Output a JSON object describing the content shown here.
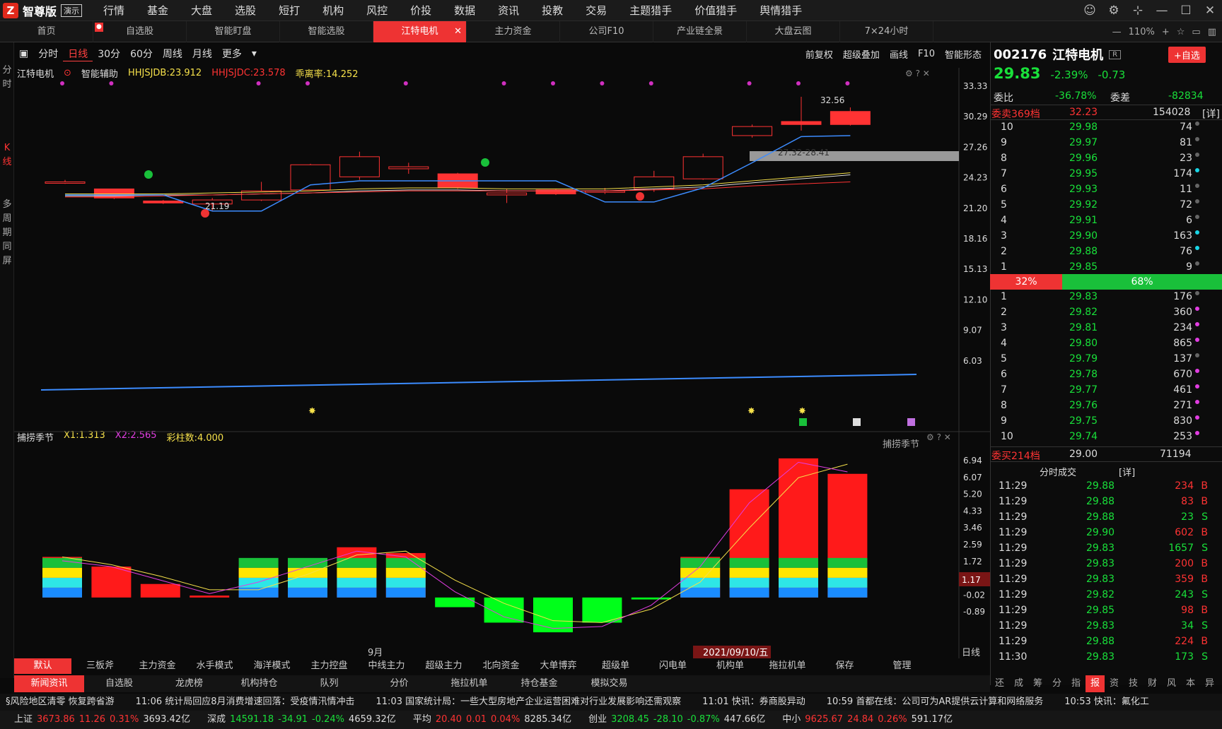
{
  "app": {
    "name": "智尊版",
    "demo": "演示"
  },
  "menu": [
    "行情",
    "基金",
    "大盘",
    "选股",
    "短打",
    "机构",
    "风控",
    "价投",
    "数据",
    "资讯",
    "投教",
    "交易",
    "主题猎手",
    "价值猎手",
    "舆情猎手"
  ],
  "tabs": [
    {
      "label": "首页"
    },
    {
      "label": "自选股"
    },
    {
      "label": "智能盯盘"
    },
    {
      "label": "智能选股"
    },
    {
      "label": "江特电机",
      "active": true
    },
    {
      "label": "主力资金"
    },
    {
      "label": "公司F10"
    },
    {
      "label": "产业链全景"
    },
    {
      "label": "大盘云图"
    },
    {
      "label": "7×24小时"
    }
  ],
  "zoom": "110%",
  "left_strip": [
    "分",
    "时",
    "K",
    "线",
    "多",
    "周",
    "期",
    "同",
    "屏"
  ],
  "periods": [
    "分时",
    "日线",
    "30分",
    "60分",
    "周线",
    "月线",
    "更多"
  ],
  "active_period": "日线",
  "right_tools": [
    "前复权",
    "超级叠加",
    "画线",
    "F10",
    "智能形态"
  ],
  "main_info": {
    "name": "江特电机",
    "assist": "智能辅助",
    "a": "HHJSJDB:23.912",
    "b": "HHJSJDC:23.578",
    "c": "乖离率:14.252"
  },
  "main_axis": [
    "33.33",
    "30.29",
    "27.26",
    "24.23",
    "21.20",
    "18.16",
    "15.13",
    "12.10",
    "9.07",
    "6.03"
  ],
  "annotations": {
    "high": "32.56",
    "low": "21.19",
    "zone": "27.32-28.41"
  },
  "ind2_info": {
    "name": "捕捞季节",
    "x1": "X1:1.313",
    "x2": "X2:2.565",
    "bars": "彩柱数:4.000",
    "right": "捕捞季节"
  },
  "ind2_axis": [
    "6.94",
    "6.07",
    "5.20",
    "4.33",
    "3.46",
    "2.59",
    "1.72",
    "0.85",
    "-0.02",
    "-0.89"
  ],
  "ind2_current": "1.17",
  "date_label": "2021/09/10/五",
  "month_label": "9月",
  "daily_label": "日线",
  "stock": {
    "code": "002176",
    "name": "江特电机",
    "price": "29.83",
    "pct": "-2.39%",
    "chg": "-0.73",
    "fav": "+自选"
  },
  "weibi": {
    "label1": "委比",
    "v1": "-36.78%",
    "label2": "委差",
    "v2": "-82834"
  },
  "sell_summary": {
    "label": "委卖369档",
    "price": "32.23",
    "vol": "154028",
    "detail": "[详]"
  },
  "sells": [
    [
      "10",
      "29.98",
      "74"
    ],
    [
      "9",
      "29.97",
      "81"
    ],
    [
      "8",
      "29.96",
      "23"
    ],
    [
      "7",
      "29.95",
      "174"
    ],
    [
      "6",
      "29.93",
      "11"
    ],
    [
      "5",
      "29.92",
      "72"
    ],
    [
      "4",
      "29.91",
      "6"
    ],
    [
      "3",
      "29.90",
      "163"
    ],
    [
      "2",
      "29.88",
      "76"
    ],
    [
      "1",
      "29.85",
      "9"
    ]
  ],
  "ratio": {
    "buy": "32%",
    "sell": "68%"
  },
  "buys": [
    [
      "1",
      "29.83",
      "176"
    ],
    [
      "2",
      "29.82",
      "360"
    ],
    [
      "3",
      "29.81",
      "234"
    ],
    [
      "4",
      "29.80",
      "865"
    ],
    [
      "5",
      "29.79",
      "137"
    ],
    [
      "6",
      "29.78",
      "670"
    ],
    [
      "7",
      "29.77",
      "461"
    ],
    [
      "8",
      "29.76",
      "271"
    ],
    [
      "9",
      "29.75",
      "830"
    ],
    [
      "10",
      "29.74",
      "253"
    ]
  ],
  "buy_summary": {
    "label": "委买214档",
    "price": "29.00",
    "vol": "71194"
  },
  "ticks_title": {
    "label": "分时成交",
    "detail": "[详]"
  },
  "ticks": [
    [
      "11:29",
      "29.88",
      "234",
      "B"
    ],
    [
      "11:29",
      "29.88",
      "83",
      "B"
    ],
    [
      "11:29",
      "29.88",
      "23",
      "S"
    ],
    [
      "11:29",
      "29.90",
      "602",
      "B"
    ],
    [
      "11:29",
      "29.83",
      "1657",
      "S"
    ],
    [
      "11:29",
      "29.83",
      "200",
      "B"
    ],
    [
      "11:29",
      "29.83",
      "359",
      "B"
    ],
    [
      "11:29",
      "29.82",
      "243",
      "S"
    ],
    [
      "11:29",
      "29.85",
      "98",
      "B"
    ],
    [
      "11:29",
      "29.83",
      "34",
      "S"
    ],
    [
      "11:29",
      "29.88",
      "224",
      "B"
    ],
    [
      "11:30",
      "29.83",
      "173",
      "S"
    ]
  ],
  "ind_tabs": [
    "默认",
    "三板斧",
    "主力资金",
    "水手模式",
    "海洋模式",
    "主力控盘",
    "中线主力",
    "超级主力",
    "北向资金",
    "大单博弈",
    "超级单",
    "闪电单",
    "机构单",
    "拖拉机单",
    "保存",
    "管理"
  ],
  "news_tabs": [
    "新闻资讯",
    "自选股",
    "龙虎榜",
    "机构持仓",
    "队列",
    "分价",
    "拖拉机单",
    "持仓基金",
    "模拟交易"
  ],
  "side_chars": [
    "还",
    "成",
    "筹",
    "分",
    "指",
    "报",
    "资",
    "技",
    "财",
    "风",
    "本",
    "异"
  ],
  "news": [
    "§风险地区清零 恢复跨省游",
    "11:06 统计局回应8月消费增速回落：受疫情汛情冲击",
    "11:03 国家统计局：一些大型房地产企业运营困难对行业发展影响还需观察",
    "11:01 快讯：券商股异动",
    "10:59 首都在线：公司可为AR提供云计算和网络服务",
    "10:53 快讯：氟化工"
  ],
  "indices": [
    {
      "name": "上证",
      "v": "3673.86",
      "c": "11.26",
      "p": "0.31%",
      "a": "3693.42亿",
      "up": true
    },
    {
      "name": "深成",
      "v": "14591.18",
      "c": "-34.91",
      "p": "-0.24%",
      "a": "4659.32亿",
      "up": false
    },
    {
      "name": "平均",
      "v": "20.40",
      "c": "0.01",
      "p": "0.04%",
      "a": "8285.34亿",
      "up": true
    },
    {
      "name": "创业",
      "v": "3208.45",
      "c": "-28.10",
      "p": "-0.87%",
      "a": "447.66亿",
      "up": false
    },
    {
      "name": "中小",
      "v": "9625.67",
      "c": "24.84",
      "p": "0.26%",
      "a": "591.17亿",
      "up": true
    }
  ],
  "colors": {
    "up": "#ff3333",
    "down": "#19e03a",
    "accent": "#e33"
  }
}
